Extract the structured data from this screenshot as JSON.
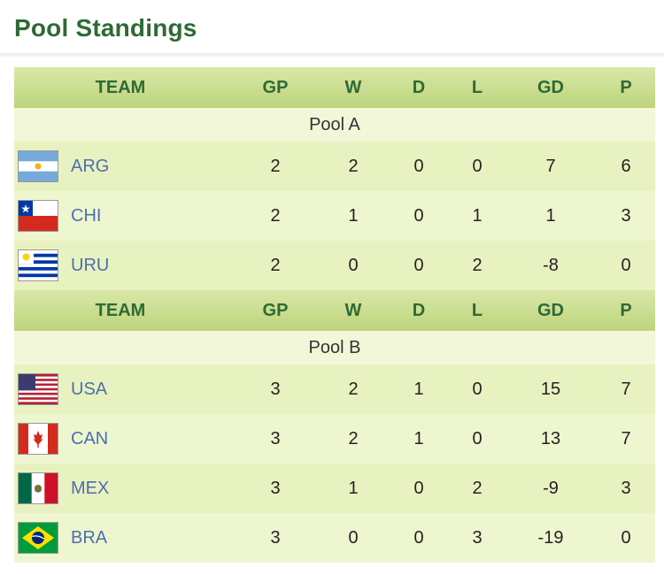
{
  "title": "Pool Standings",
  "headers": [
    "TEAM",
    "GP",
    "W",
    "D",
    "L",
    "GD",
    "P"
  ],
  "pools": [
    {
      "name": "Pool A",
      "teams": [
        {
          "code": "ARG",
          "flag": "argentina-flag-icon",
          "gp": "2",
          "w": "2",
          "d": "0",
          "l": "0",
          "gd": "7",
          "p": "6"
        },
        {
          "code": "CHI",
          "flag": "chile-flag-icon",
          "gp": "2",
          "w": "1",
          "d": "0",
          "l": "1",
          "gd": "1",
          "p": "3"
        },
        {
          "code": "URU",
          "flag": "uruguay-flag-icon",
          "gp": "2",
          "w": "0",
          "d": "0",
          "l": "2",
          "gd": "-8",
          "p": "0"
        }
      ]
    },
    {
      "name": "Pool B",
      "teams": [
        {
          "code": "USA",
          "flag": "usa-flag-icon",
          "gp": "3",
          "w": "2",
          "d": "1",
          "l": "0",
          "gd": "15",
          "p": "7"
        },
        {
          "code": "CAN",
          "flag": "canada-flag-icon",
          "gp": "3",
          "w": "2",
          "d": "1",
          "l": "0",
          "gd": "13",
          "p": "7"
        },
        {
          "code": "MEX",
          "flag": "mexico-flag-icon",
          "gp": "3",
          "w": "1",
          "d": "0",
          "l": "2",
          "gd": "-9",
          "p": "3"
        },
        {
          "code": "BRA",
          "flag": "brazil-flag-icon",
          "gp": "3",
          "w": "0",
          "d": "0",
          "l": "3",
          "gd": "-19",
          "p": "0"
        }
      ]
    }
  ],
  "colors": {
    "title": "#2f6a35",
    "team_link": "#4c6fae",
    "header_bg": "#bdd47c",
    "row_bg": "#e8f2c0"
  }
}
